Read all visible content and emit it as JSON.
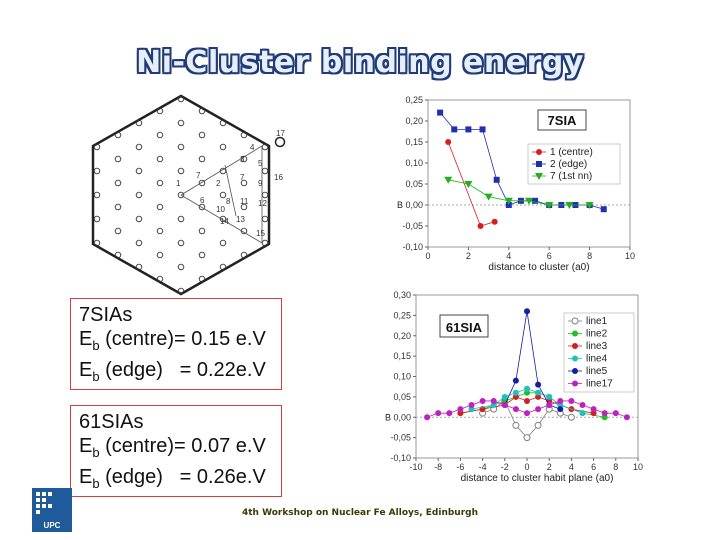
{
  "title": "Ni-Cluster binding energy",
  "footer": "4th Workshop on Nuclear Fe Alloys, Edinburgh",
  "box1": {
    "line1": "7SIAs",
    "centre_label": "(centre)= 0.15 e.V",
    "edge_label": "(edge)   = 0.22e.V",
    "sub": "b",
    "E": "E"
  },
  "box2": {
    "line1": "61SIAs",
    "centre_label": "(centre)= 0.07 e.V",
    "edge_label": "(edge)   = 0.26e.V",
    "sub": "b",
    "E": "E"
  },
  "hex_labels": [
    "7",
    "1",
    "2",
    "3",
    "4",
    "5",
    "6",
    "7",
    "8",
    "9",
    "10",
    "11",
    "12",
    "13",
    "14",
    "15",
    "16",
    "17"
  ],
  "logo_text": "UPC",
  "chart_data": [
    {
      "type": "line",
      "title": "7SIA",
      "xlabel": "distance to cluster (a0)",
      "ylabel": "B",
      "xlim": [
        0,
        10
      ],
      "ylim": [
        -0.1,
        0.25
      ],
      "xticks": [
        "0",
        "2",
        "4",
        "6",
        "8",
        "10"
      ],
      "yticks": [
        "-0,10",
        "-0,05",
        "0,00",
        "0,05",
        "0,10",
        "0,15",
        "0,20",
        "0,25"
      ],
      "series": [
        {
          "name": "1 (centre)",
          "color": "#d62020",
          "marker": "circle",
          "points": [
            [
              1.0,
              0.15
            ],
            [
              2.6,
              -0.05
            ],
            [
              3.3,
              -0.04
            ]
          ]
        },
        {
          "name": "2 (edge)",
          "color": "#2030b0",
          "marker": "square",
          "points": [
            [
              0.6,
              0.22
            ],
            [
              1.3,
              0.18
            ],
            [
              2.0,
              0.18
            ],
            [
              2.7,
              0.18
            ],
            [
              3.4,
              0.06
            ],
            [
              4.0,
              0.0
            ],
            [
              4.6,
              0.01
            ],
            [
              5.3,
              0.01
            ],
            [
              6.0,
              0.0
            ],
            [
              6.6,
              0.0
            ],
            [
              7.3,
              0.0
            ],
            [
              8.0,
              0.0
            ],
            [
              8.7,
              -0.01
            ]
          ]
        },
        {
          "name": "7 (1st nn)",
          "color": "#20b020",
          "marker": "triangle",
          "points": [
            [
              1.0,
              0.06
            ],
            [
              2.0,
              0.05
            ],
            [
              3.0,
              0.02
            ],
            [
              4.0,
              0.01
            ],
            [
              5.0,
              0.01
            ],
            [
              6.0,
              0.0
            ],
            [
              7.0,
              0.0
            ],
            [
              8.0,
              0.0
            ]
          ]
        }
      ]
    },
    {
      "type": "line",
      "title": "61SIA",
      "xlabel": "distance to cluster habit plane (a0)",
      "ylabel": "B",
      "xlim": [
        -10,
        10
      ],
      "ylim": [
        -0.1,
        0.3
      ],
      "xticks": [
        "-10",
        "-8",
        "-6",
        "-4",
        "-2",
        "0",
        "2",
        "4",
        "6",
        "8",
        "10"
      ],
      "yticks": [
        "-0,10",
        "-0,05",
        "0,00",
        "0,05",
        "0,10",
        "0,15",
        "0,20",
        "0,25",
        "0,30"
      ],
      "series": [
        {
          "name": "line1",
          "color": "#808080",
          "marker": "open-circle",
          "points": [
            [
              -4,
              0.01
            ],
            [
              -3,
              0.02
            ],
            [
              -2,
              0.04
            ],
            [
              -1,
              -0.02
            ],
            [
              0,
              -0.05
            ],
            [
              1,
              -0.02
            ],
            [
              2,
              0.02
            ],
            [
              3,
              0.01
            ],
            [
              4,
              0.0
            ]
          ]
        },
        {
          "name": "line2",
          "color": "#20c020",
          "marker": "circle",
          "points": [
            [
              -6,
              0.01
            ],
            [
              -4,
              0.02
            ],
            [
              -2,
              0.04
            ],
            [
              -1,
              0.05
            ],
            [
              0,
              0.06
            ],
            [
              1,
              0.06
            ],
            [
              2,
              0.05
            ],
            [
              3,
              0.03
            ],
            [
              5,
              0.01
            ],
            [
              7,
              0.0
            ]
          ]
        },
        {
          "name": "line3",
          "color": "#d02020",
          "marker": "circle",
          "points": [
            [
              -6,
              0.01
            ],
            [
              -4,
              0.02
            ],
            [
              -2,
              0.03
            ],
            [
              -1,
              0.05
            ],
            [
              0,
              0.04
            ],
            [
              1,
              0.05
            ],
            [
              2,
              0.04
            ],
            [
              4,
              0.02
            ],
            [
              6,
              0.01
            ]
          ]
        },
        {
          "name": "line4",
          "color": "#20c0c0",
          "marker": "circle",
          "points": [
            [
              -5,
              0.02
            ],
            [
              -3,
              0.03
            ],
            [
              -2,
              0.05
            ],
            [
              -1,
              0.06
            ],
            [
              0,
              0.07
            ],
            [
              1,
              0.06
            ],
            [
              2,
              0.05
            ],
            [
              3,
              0.03
            ],
            [
              5,
              0.01
            ]
          ]
        },
        {
          "name": "line5",
          "color": "#1020a0",
          "marker": "circle",
          "points": [
            [
              -2,
              0.03
            ],
            [
              -1,
              0.09
            ],
            [
              0,
              0.26
            ],
            [
              1,
              0.08
            ],
            [
              2,
              0.03
            ],
            [
              3,
              0.02
            ]
          ]
        },
        {
          "name": "line17",
          "color": "#c020c0",
          "marker": "circle",
          "points": [
            [
              -9,
              0.0
            ],
            [
              -8,
              0.01
            ],
            [
              -7,
              0.01
            ],
            [
              -6,
              0.02
            ],
            [
              -5,
              0.03
            ],
            [
              -4,
              0.04
            ],
            [
              -3,
              0.04
            ],
            [
              -2,
              0.03
            ],
            [
              -1,
              0.02
            ],
            [
              0,
              0.01
            ],
            [
              1,
              0.02
            ],
            [
              2,
              0.03
            ],
            [
              3,
              0.04
            ],
            [
              4,
              0.04
            ],
            [
              5,
              0.03
            ],
            [
              6,
              0.02
            ],
            [
              7,
              0.01
            ],
            [
              8,
              0.01
            ],
            [
              9,
              0.0
            ]
          ]
        }
      ]
    }
  ]
}
